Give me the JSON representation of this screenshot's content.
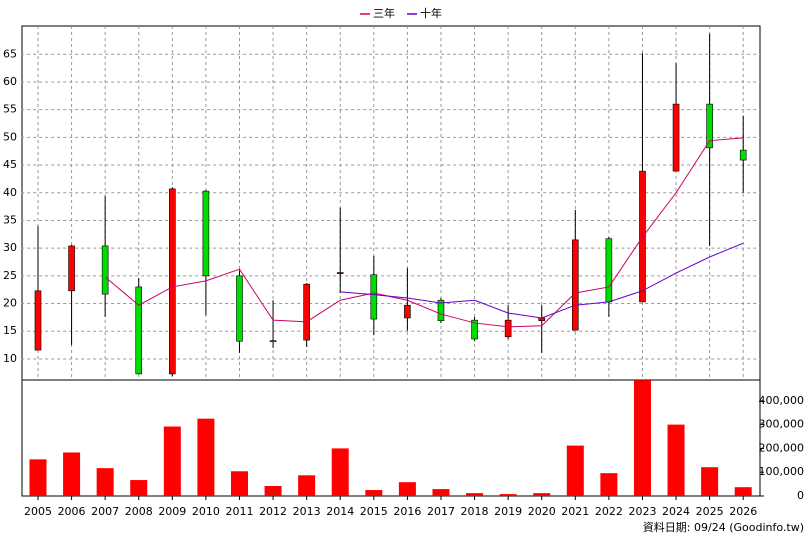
{
  "chart_data": {
    "type": "candlestick",
    "categories": [
      "2005",
      "2006",
      "2007",
      "2008",
      "2009",
      "2010",
      "2011",
      "2012",
      "2013",
      "2014",
      "2015",
      "2016",
      "2017",
      "2018",
      "2019",
      "2020",
      "2021",
      "2022",
      "2023",
      "2024",
      "2025",
      "2026"
    ],
    "open": [
      11.6,
      22.3,
      30.4,
      23.0,
      7.3,
      40.3,
      25.0,
      13.3,
      13.4,
      25.4,
      25.2,
      17.4,
      20.6,
      17.0,
      14.0,
      16.9,
      15.2,
      31.7,
      20.3,
      43.9,
      56.0,
      47.7
    ],
    "high": [
      34.0,
      30.6,
      39.4,
      24.6,
      41.0,
      40.5,
      26.0,
      20.6,
      23.7,
      37.3,
      28.6,
      26.4,
      21.0,
      17.6,
      19.7,
      19.7,
      36.9,
      32.0,
      65.2,
      63.4,
      68.7,
      53.9
    ],
    "low": [
      11.6,
      12.5,
      17.6,
      7.3,
      6.9,
      17.9,
      11.1,
      12.0,
      12.2,
      21.9,
      14.3,
      15.1,
      16.5,
      13.2,
      13.6,
      11.1,
      15.2,
      17.6,
      20.3,
      43.9,
      30.4,
      40.0
    ],
    "close": [
      22.3,
      30.4,
      21.7,
      7.3,
      40.7,
      25.0,
      13.2,
      13.1,
      23.5,
      25.6,
      17.2,
      19.7,
      16.9,
      13.6,
      17.0,
      17.4,
      31.5,
      20.3,
      43.9,
      56.0,
      48.1,
      45.9
    ],
    "up_color": "#ff0000",
    "down_color": "#00dd00",
    "ylim": [
      6.2,
      70.1
    ],
    "yticks": [
      10,
      15,
      20,
      25,
      30,
      35,
      40,
      45,
      50,
      55,
      60,
      65
    ],
    "grid": true,
    "series": [
      {
        "name": "三年",
        "color": "#cc0066",
        "values": [
          null,
          null,
          24.8,
          19.7,
          23.0,
          24.1,
          26.2,
          17.0,
          16.7,
          20.6,
          21.9,
          20.6,
          18.1,
          16.5,
          15.8,
          16.0,
          21.9,
          23.0,
          32.0,
          40.0,
          49.4,
          49.9
        ]
      },
      {
        "name": "十年",
        "color": "#6600cc",
        "values": [
          null,
          null,
          null,
          null,
          null,
          null,
          null,
          null,
          null,
          22.1,
          21.6,
          21.0,
          20.1,
          20.6,
          18.3,
          17.4,
          19.7,
          20.3,
          22.3,
          25.5,
          28.4,
          30.9
        ]
      }
    ],
    "volume": {
      "type": "bar",
      "color": "#ff0000",
      "values": [
        154000,
        183000,
        117000,
        67000,
        292000,
        325000,
        104000,
        42000,
        87000,
        200000,
        25000,
        58000,
        29000,
        12000,
        8000,
        12000,
        212000,
        96000,
        487000,
        300000,
        121000,
        37000
      ],
      "ylim": [
        0,
        487500
      ],
      "yticks": [
        0,
        {
          "value": 100000,
          "label": "100,000"
        },
        {
          "value": 200000,
          "label": "200,000"
        },
        {
          "value": 300000,
          "label": "300,000"
        },
        {
          "value": 400000,
          "label": "400,000"
        }
      ]
    },
    "note": "資料日期: 09/24  (Goodinfo.tw)"
  }
}
